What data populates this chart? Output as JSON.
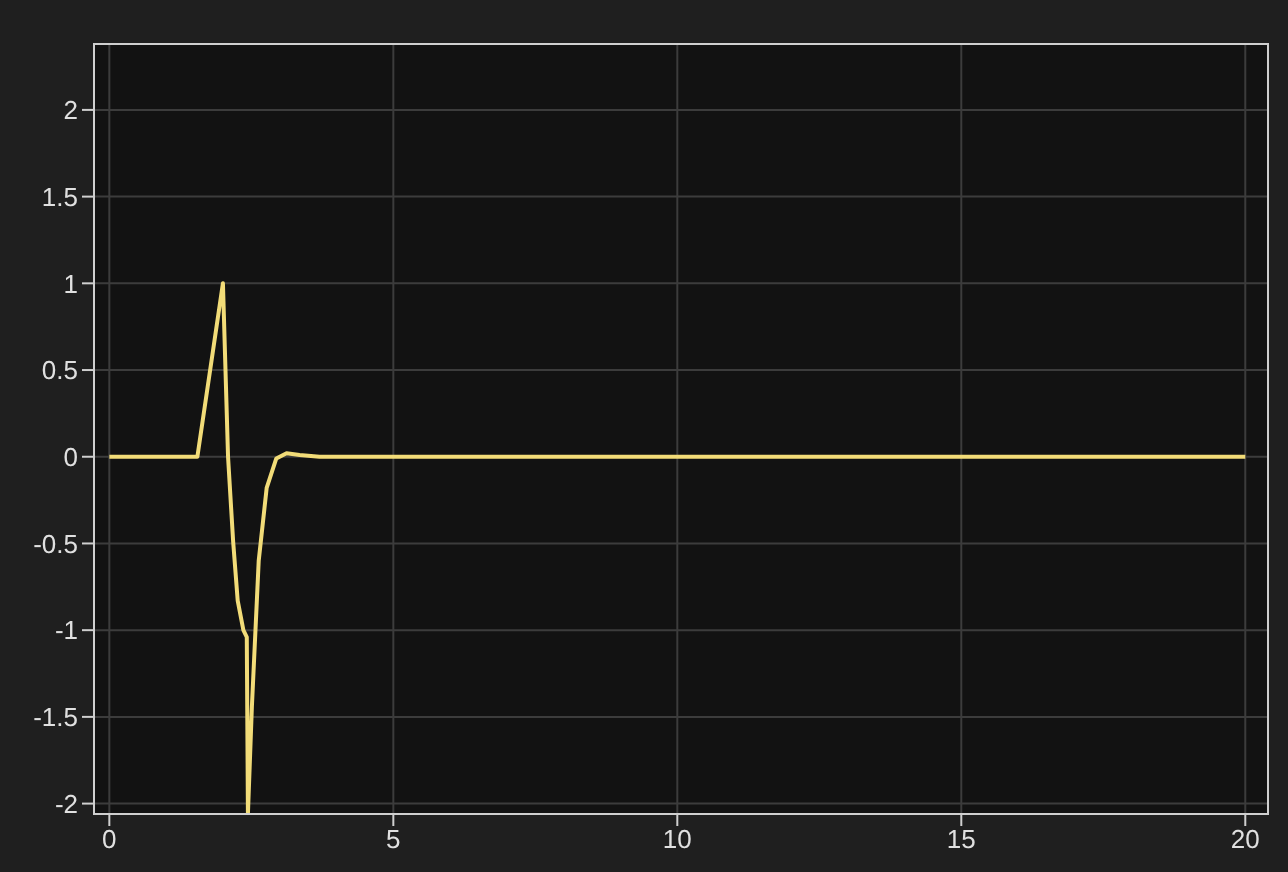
{
  "chart_data": {
    "type": "line",
    "x": [
      0,
      1.55,
      2.0,
      2.09,
      2.18,
      2.26,
      2.36,
      2.42,
      2.44,
      2.51,
      2.63,
      2.77,
      2.94,
      3.12,
      3.35,
      3.7,
      20
    ],
    "series": [
      {
        "color": "#f2dc78",
        "values": [
          0,
          0,
          1,
          0,
          -0.49,
          -0.83,
          -1.0,
          -1.04,
          -2.06,
          -1.44,
          -0.6,
          -0.18,
          -0.01,
          0.02,
          0.01,
          0,
          0
        ]
      }
    ],
    "xlim": [
      -0.27,
      20.4
    ],
    "xticks": [
      0,
      5,
      10,
      15,
      20
    ],
    "ylim": [
      -2.06,
      2.38
    ],
    "yticks": [
      -2,
      -1.5,
      -1,
      -0.5,
      0,
      0.5,
      1,
      1.5,
      2
    ],
    "grid": true,
    "marker": "none",
    "line_style": "solid",
    "legend": false
  }
}
